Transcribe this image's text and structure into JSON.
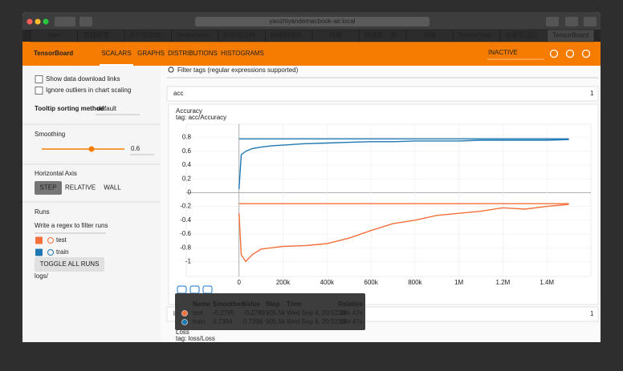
{
  "browser": {
    "url": "yaozhiyandemacbook-air.local",
    "tabs": [
      "Start",
      "高级检索 -...",
      "手只有到是...",
      "Tensorboar...",
      "带你测过神...",
      "神经网络的...",
      "百度",
      "訓練集、測...",
      "百度",
      "TensorFlow...",
      "深度学习的...",
      "TensorBoard"
    ]
  },
  "header": {
    "title": "TensorBoard",
    "nav": [
      "SCALARS",
      "GRAPHS",
      "DISTRIBUTIONS",
      "HISTOGRAMS"
    ],
    "status": "INACTIVE"
  },
  "sidebar": {
    "checkboxes": [
      "Show data download links",
      "Ignore outliers in chart scaling"
    ],
    "tooltip_sorting_label": "Tooltip sorting method:",
    "tooltip_sorting_value": "default",
    "smoothing_label": "Smoothing",
    "smoothing_value": 0.6,
    "axis_label": "Horizontal Axis",
    "axis_options": [
      "STEP",
      "RELATIVE",
      "WALL"
    ],
    "runs_label": "Runs",
    "runs_filter": "Write a regex to filter runs",
    "runs": [
      "test",
      "train"
    ],
    "toggle_button": "TOGGLE ALL RUNS",
    "logdir": "logs/"
  },
  "main": {
    "filter_placeholder": "Filter tags (regular expressions supported)",
    "groups": [
      {
        "name": "acc",
        "count": 1
      },
      {
        "name": "lo",
        "count": 1
      }
    ],
    "second_chart": {
      "title": "Loss",
      "subtitle": "tag: loss/Loss"
    }
  },
  "chart_data": {
    "type": "line",
    "title": "Accuracy",
    "subtitle": "tag: acc/Accuracy",
    "x": [
      0,
      10000,
      30000,
      60000,
      100000,
      150000,
      200000,
      300000,
      400000,
      500000,
      600000,
      700000,
      800000,
      900000,
      1000000,
      1100000,
      1200000,
      1300000,
      1400000,
      1500000
    ],
    "series": [
      {
        "name": "test",
        "color": "#f4703a",
        "flat": -0.16,
        "values": [
          -0.3,
          -0.9,
          -1.0,
          -0.9,
          -0.82,
          -0.8,
          -0.78,
          -0.77,
          -0.74,
          -0.66,
          -0.55,
          -0.45,
          -0.4,
          -0.33,
          -0.3,
          -0.27,
          -0.22,
          -0.24,
          -0.2,
          -0.17
        ]
      },
      {
        "name": "train",
        "color": "#1f78b4",
        "flat": 0.78,
        "values": [
          0.05,
          0.55,
          0.6,
          0.64,
          0.66,
          0.68,
          0.69,
          0.71,
          0.72,
          0.73,
          0.74,
          0.74,
          0.75,
          0.75,
          0.75,
          0.76,
          0.76,
          0.76,
          0.76,
          0.77
        ]
      }
    ],
    "xlim": [
      -240000,
      1600000
    ],
    "ylim": [
      -1.1,
      0.9
    ],
    "xticks": [
      0,
      {
        "value": 200000,
        "label": "200k"
      },
      {
        "value": 400000,
        "label": "400k"
      },
      {
        "value": 600000,
        "label": "600k"
      },
      {
        "value": 800000,
        "label": "800k"
      },
      {
        "value": 1000000,
        "label": "1M"
      },
      {
        "value": 1200000,
        "label": "1.2M"
      },
      {
        "value": 1400000,
        "label": "1.4M"
      }
    ],
    "yticks": [
      0.8,
      0.6,
      0.4,
      0.2,
      0,
      -0.2,
      -0.4,
      -0.6,
      -0.8,
      -1
    ],
    "grid": true
  },
  "tooltip": {
    "columns": [
      "Name",
      "Smoothed",
      "Value",
      "Step",
      "Time",
      "Relative"
    ],
    "rows": [
      [
        "test",
        -0.2765,
        -0.2789,
        "905.5k",
        "Wed Sep 4, 20:52:18",
        "18m 47s"
      ],
      [
        "train",
        0.7394,
        0.7396,
        "905.5k",
        "Wed Sep 4, 20:52:18",
        "18m 47s"
      ]
    ]
  }
}
